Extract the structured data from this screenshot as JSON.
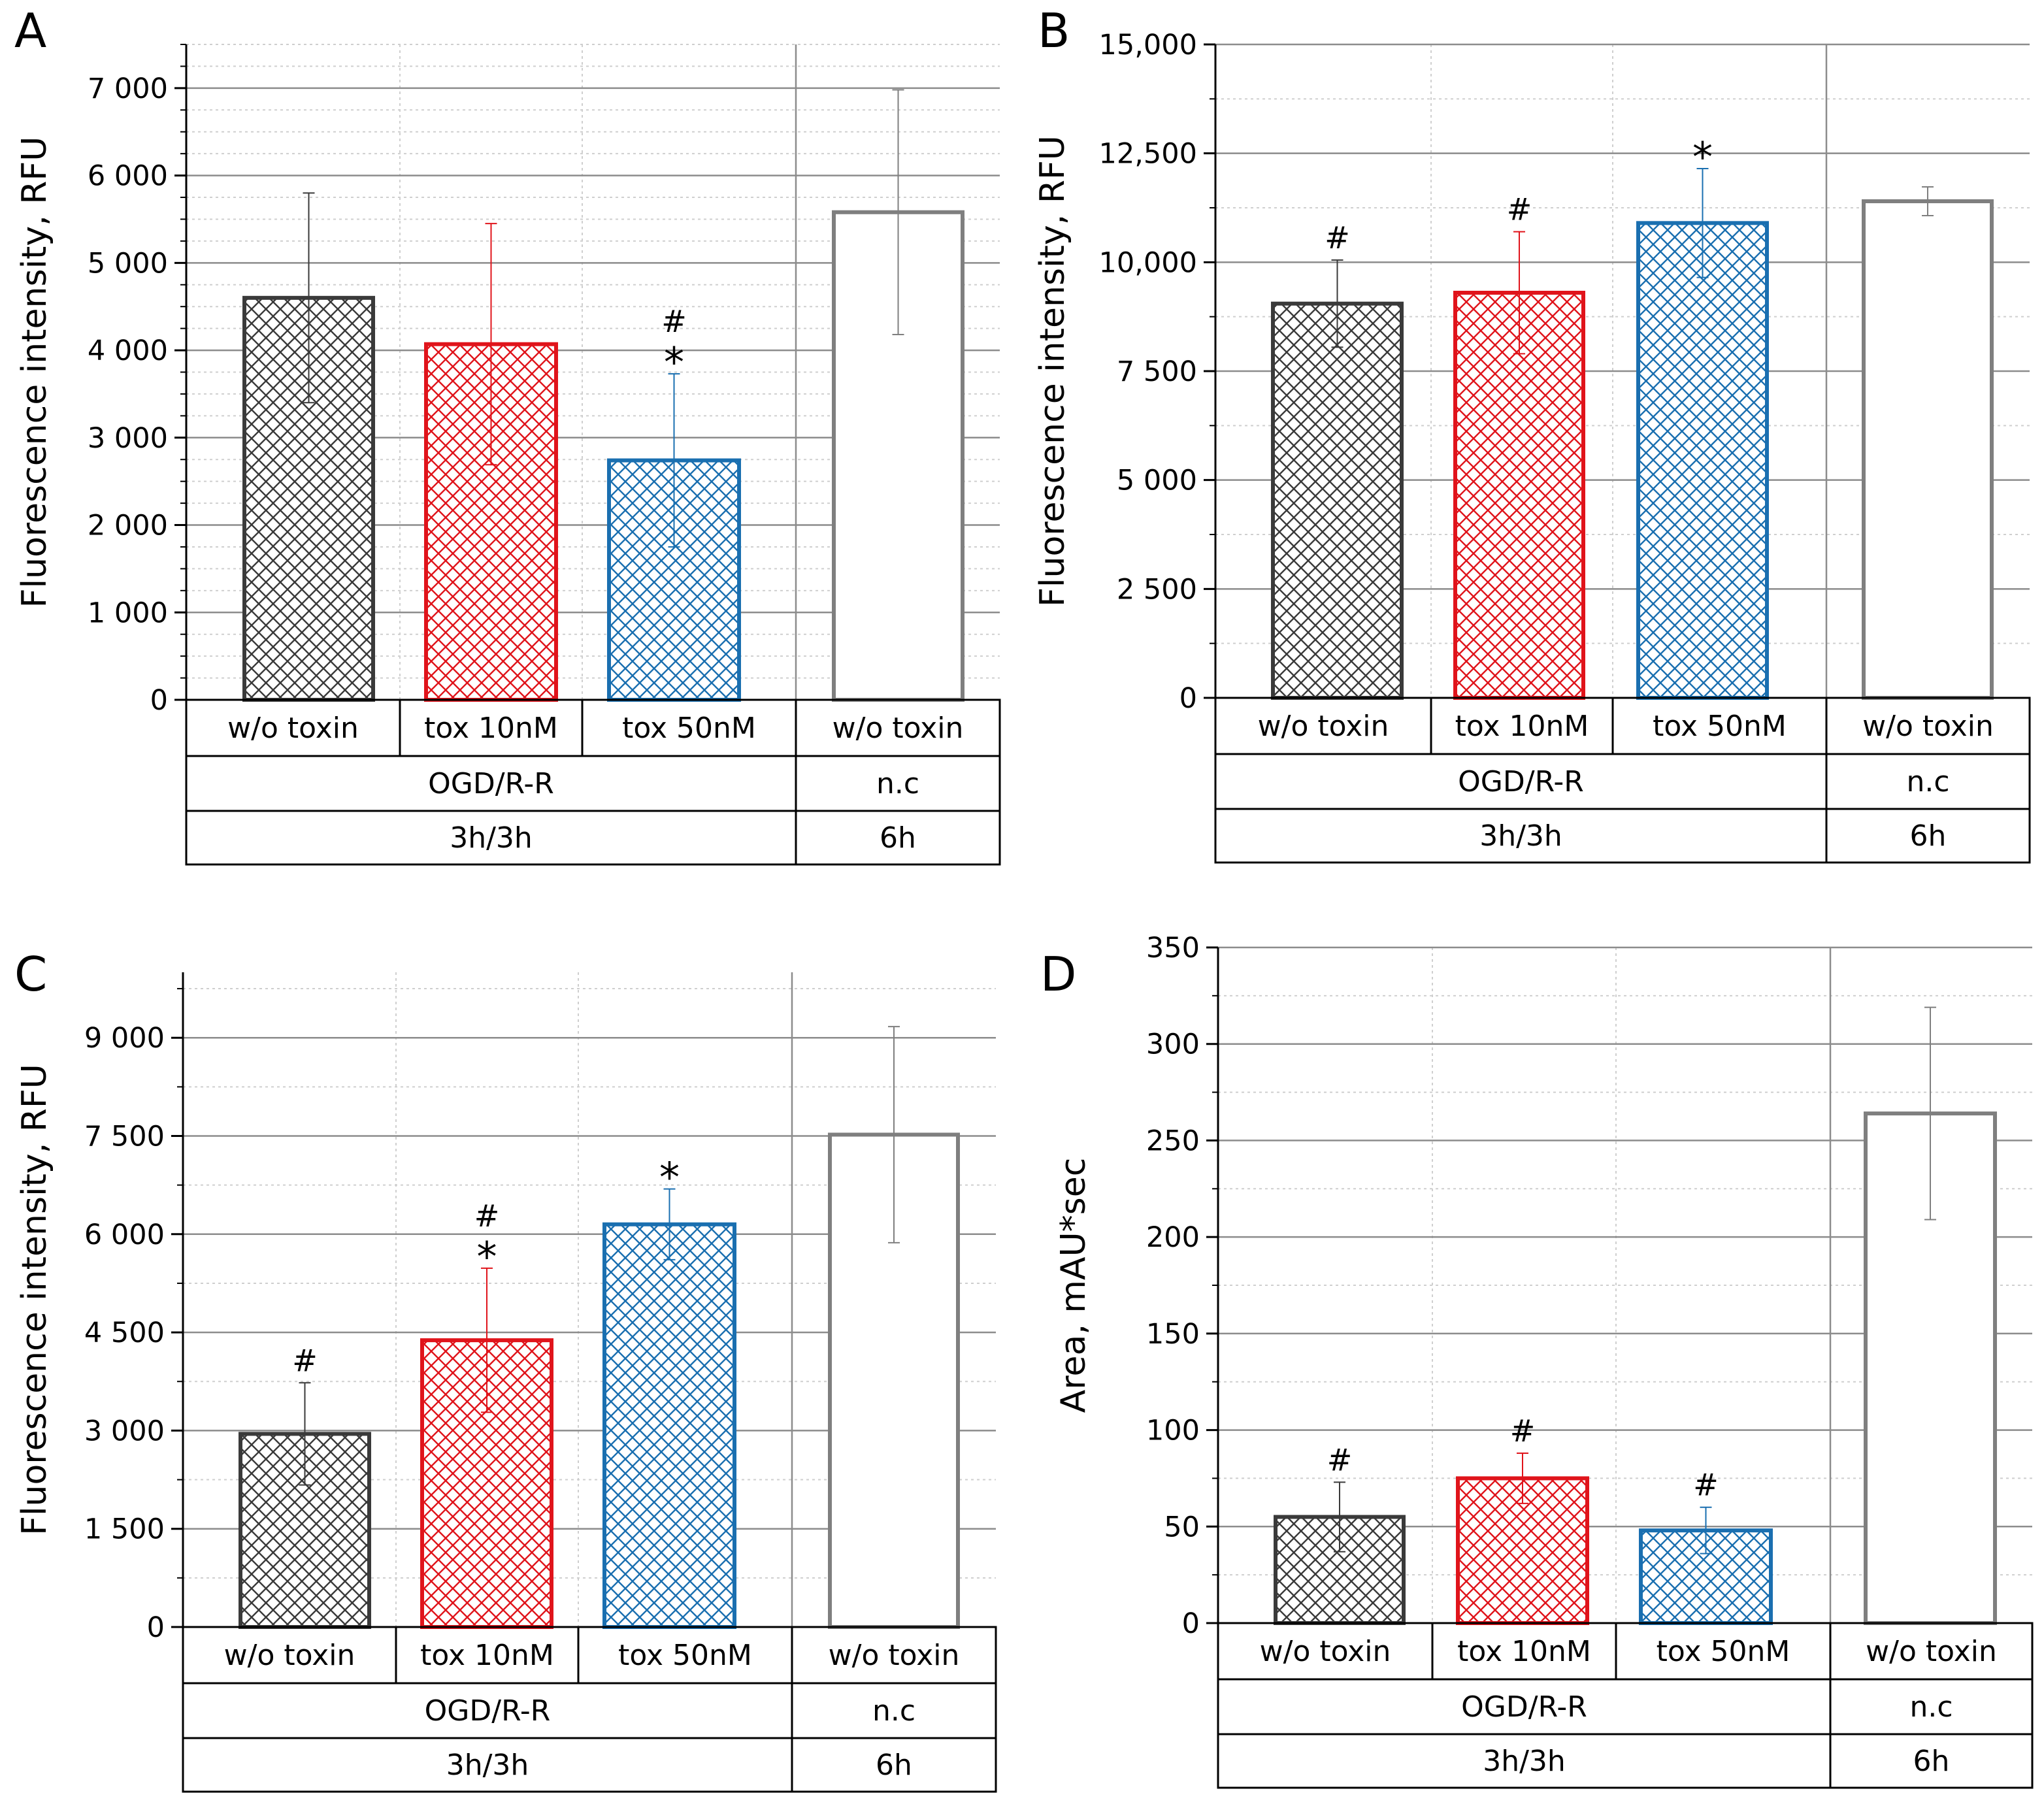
{
  "figure": {
    "group_row1_labels": [
      "OGD/R-R",
      "n.c"
    ],
    "group_row2_labels": [
      "3h/3h",
      "6h"
    ]
  },
  "colors": {
    "black": "#3a3a3a",
    "red": "#e0141b",
    "blue": "#1a6fb0",
    "gray": "#7f7f7f",
    "major_grid": "#8c8c8c",
    "minor_grid": "#cfcfcf"
  },
  "chart_data": [
    {
      "panel": "A",
      "type": "bar",
      "ylabel": "Fluorescence intensity, RFU",
      "ylim": [
        0,
        7500
      ],
      "yticks": [
        0,
        1000,
        2000,
        3000,
        4000,
        5000,
        6000,
        7000
      ],
      "ytick_labels": [
        "0",
        "1 000",
        "2 000",
        "3 000",
        "4 000",
        "5 000",
        "6 000",
        "7 000"
      ],
      "minor_step": 250,
      "categories": [
        "w/o toxin",
        "tox 10nM",
        "tox 50nM",
        "w/o toxin"
      ],
      "values": [
        4600,
        4070,
        2740,
        5580
      ],
      "errors": [
        1200,
        1380,
        990,
        1400
      ],
      "fill": [
        "crosshatch",
        "crosshatch",
        "crosshatch",
        "none"
      ],
      "colors": [
        "black",
        "red",
        "blue",
        "gray"
      ],
      "annotations": [
        [],
        [],
        [
          "#",
          "*"
        ],
        []
      ],
      "groups": [
        {
          "label": "OGD/R-R",
          "span": [
            0,
            2
          ]
        },
        {
          "label": "n.c",
          "span": [
            3,
            3
          ]
        }
      ],
      "times": [
        {
          "label": "3h/3h",
          "span": [
            0,
            2
          ]
        },
        {
          "label": "6h",
          "span": [
            3,
            3
          ]
        }
      ]
    },
    {
      "panel": "B",
      "type": "bar",
      "ylabel": "Fluorescence intensity, RFU",
      "ylim": [
        0,
        15000
      ],
      "yticks": [
        0,
        2500,
        5000,
        7500,
        10000,
        12500,
        15000
      ],
      "ytick_labels": [
        "0",
        "2 500",
        "5 000",
        "7 500",
        "10,000",
        "12,500",
        "15,000"
      ],
      "minor_step": 1250,
      "categories": [
        "w/o toxin",
        "tox 10nM",
        "tox 50nM",
        "w/o toxin"
      ],
      "values": [
        9050,
        9300,
        10900,
        11400
      ],
      "errors": [
        1000,
        1400,
        1250,
        330
      ],
      "fill": [
        "crosshatch",
        "crosshatch",
        "crosshatch",
        "none"
      ],
      "colors": [
        "black",
        "red",
        "blue",
        "gray"
      ],
      "annotations": [
        [
          "#"
        ],
        [
          "#"
        ],
        [
          "*"
        ],
        []
      ],
      "groups": [
        {
          "label": "OGD/R-R",
          "span": [
            0,
            2
          ]
        },
        {
          "label": "n.c",
          "span": [
            3,
            3
          ]
        }
      ],
      "times": [
        {
          "label": "3h/3h",
          "span": [
            0,
            2
          ]
        },
        {
          "label": "6h",
          "span": [
            3,
            3
          ]
        }
      ]
    },
    {
      "panel": "C",
      "type": "bar",
      "ylabel": "Fluorescence intensity, RFU",
      "ylim": [
        0,
        10000
      ],
      "yticks": [
        0,
        1500,
        3000,
        4500,
        6000,
        7500,
        9000
      ],
      "ytick_labels": [
        "0",
        "1 500",
        "3 000",
        "4 500",
        "6 000",
        "7 500",
        "9 000"
      ],
      "minor_step": 750,
      "categories": [
        "w/o toxin",
        "tox 10nM",
        "tox 50nM",
        "w/o toxin"
      ],
      "values": [
        2950,
        4380,
        6150,
        7520
      ],
      "errors": [
        780,
        1100,
        540,
        1650
      ],
      "fill": [
        "crosshatch",
        "crosshatch",
        "crosshatch",
        "none"
      ],
      "colors": [
        "black",
        "red",
        "blue",
        "gray"
      ],
      "annotations": [
        [
          "#"
        ],
        [
          "#",
          "*"
        ],
        [
          "*"
        ],
        []
      ],
      "groups": [
        {
          "label": "OGD/R-R",
          "span": [
            0,
            2
          ]
        },
        {
          "label": "n.c",
          "span": [
            3,
            3
          ]
        }
      ],
      "times": [
        {
          "label": "3h/3h",
          "span": [
            0,
            2
          ]
        },
        {
          "label": "6h",
          "span": [
            3,
            3
          ]
        }
      ]
    },
    {
      "panel": "D",
      "type": "bar",
      "ylabel": "Area, mAU*sec",
      "ylim": [
        0,
        350
      ],
      "yticks": [
        0,
        50,
        100,
        150,
        200,
        250,
        300,
        350
      ],
      "ytick_labels": [
        "0",
        "50",
        "100",
        "150",
        "200",
        "250",
        "300",
        "350"
      ],
      "minor_step": 25,
      "categories": [
        "w/o toxin",
        "tox 10nM",
        "tox 50nM",
        "w/o toxin"
      ],
      "values": [
        55,
        75,
        48,
        264
      ],
      "errors": [
        18,
        13,
        12,
        55
      ],
      "fill": [
        "crosshatch",
        "crosshatch",
        "crosshatch",
        "none"
      ],
      "colors": [
        "black",
        "red",
        "blue",
        "gray"
      ],
      "annotations": [
        [
          "#"
        ],
        [
          "#"
        ],
        [
          "#"
        ],
        []
      ],
      "groups": [
        {
          "label": "OGD/R-R",
          "span": [
            0,
            2
          ]
        },
        {
          "label": "n.c",
          "span": [
            3,
            3
          ]
        }
      ],
      "times": [
        {
          "label": "3h/3h",
          "span": [
            0,
            2
          ]
        },
        {
          "label": "6h",
          "span": [
            3,
            3
          ]
        }
      ]
    }
  ]
}
